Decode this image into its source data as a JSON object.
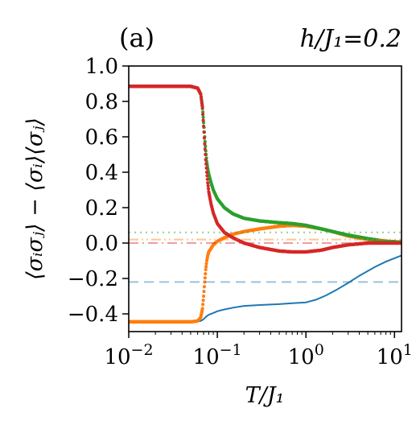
{
  "chart_data": {
    "type": "line",
    "panel_label": "(a)",
    "parameter_label": "h/J₁=0.2",
    "xlabel": "T/J₁",
    "ylabel": "⟨σᵢσⱼ⟩ − ⟨σᵢ⟩⟨σⱼ⟩",
    "x_scale": "log",
    "xlim": [
      0.01,
      12
    ],
    "ylim": [
      -0.5,
      1.0
    ],
    "x_ticks": [
      {
        "value": 0.01,
        "base": "10",
        "exp": "−2"
      },
      {
        "value": 0.1,
        "base": "10",
        "exp": "−1"
      },
      {
        "value": 1,
        "base": "10",
        "exp": "0"
      },
      {
        "value": 10,
        "base": "10",
        "exp": "1"
      }
    ],
    "y_ticks": [
      {
        "value": 1.0,
        "label": "1.0"
      },
      {
        "value": 0.8,
        "label": "0.8"
      },
      {
        "value": 0.6,
        "label": "0.6"
      },
      {
        "value": 0.4,
        "label": "0.4"
      },
      {
        "value": 0.2,
        "label": "0.2"
      },
      {
        "value": 0.0,
        "label": "0.0"
      },
      {
        "value": -0.2,
        "label": "−0.2"
      },
      {
        "value": -0.4,
        "label": "−0.4"
      }
    ],
    "grid": false,
    "legend": "none",
    "series": [
      {
        "color": "#1f77b4",
        "style": "solid",
        "x": [
          0.01,
          0.03,
          0.055,
          0.065,
          0.07,
          0.075,
          0.08,
          0.09,
          0.1,
          0.12,
          0.15,
          0.2,
          0.3,
          0.5,
          0.7,
          1.0,
          1.3,
          1.7,
          2.2,
          3.0,
          4.0,
          6.0,
          8.0,
          12.0
        ],
        "y": [
          -0.445,
          -0.445,
          -0.445,
          -0.44,
          -0.43,
          -0.415,
          -0.405,
          -0.395,
          -0.385,
          -0.375,
          -0.365,
          -0.355,
          -0.35,
          -0.345,
          -0.34,
          -0.335,
          -0.32,
          -0.295,
          -0.265,
          -0.225,
          -0.185,
          -0.135,
          -0.105,
          -0.07
        ]
      },
      {
        "color": "#ff7f0e",
        "style": "markers",
        "x": [
          0.01,
          0.05,
          0.06,
          0.065,
          0.068,
          0.07,
          0.072,
          0.074,
          0.076,
          0.078,
          0.08,
          0.085,
          0.09,
          0.1,
          0.12,
          0.15,
          0.2,
          0.3,
          0.5,
          0.7,
          1.0,
          1.5,
          2.0,
          3.0,
          5.0,
          8.0,
          12.0
        ],
        "y": [
          -0.445,
          -0.445,
          -0.44,
          -0.42,
          -0.37,
          -0.3,
          -0.22,
          -0.15,
          -0.1,
          -0.07,
          -0.05,
          -0.03,
          -0.01,
          0.01,
          0.03,
          0.05,
          0.065,
          0.08,
          0.095,
          0.1,
          0.095,
          0.08,
          0.065,
          0.04,
          0.02,
          0.01,
          0.005
        ]
      },
      {
        "color": "#2ca02c",
        "style": "markers",
        "x": [
          0.01,
          0.05,
          0.06,
          0.065,
          0.068,
          0.07,
          0.072,
          0.074,
          0.076,
          0.078,
          0.08,
          0.085,
          0.09,
          0.1,
          0.12,
          0.15,
          0.2,
          0.3,
          0.5,
          0.7,
          1.0,
          1.5,
          2.0,
          3.0,
          5.0,
          8.0,
          12.0
        ],
        "y": [
          0.885,
          0.885,
          0.875,
          0.84,
          0.77,
          0.68,
          0.6,
          0.52,
          0.46,
          0.42,
          0.39,
          0.34,
          0.3,
          0.25,
          0.2,
          0.165,
          0.14,
          0.125,
          0.115,
          0.11,
          0.1,
          0.08,
          0.065,
          0.045,
          0.025,
          0.01,
          0.005
        ]
      },
      {
        "color": "#d62728",
        "style": "markers",
        "x": [
          0.01,
          0.05,
          0.06,
          0.065,
          0.068,
          0.07,
          0.072,
          0.074,
          0.076,
          0.078,
          0.08,
          0.085,
          0.09,
          0.1,
          0.12,
          0.15,
          0.2,
          0.3,
          0.5,
          0.7,
          1.0,
          1.5,
          2.0,
          3.0,
          5.0,
          8.0,
          12.0
        ],
        "y": [
          0.885,
          0.885,
          0.875,
          0.84,
          0.76,
          0.66,
          0.56,
          0.47,
          0.4,
          0.34,
          0.29,
          0.22,
          0.17,
          0.11,
          0.06,
          0.03,
          0.0,
          -0.025,
          -0.045,
          -0.05,
          -0.05,
          -0.04,
          -0.025,
          -0.01,
          0.0,
          0.0,
          0.0
        ]
      },
      {
        "color": "#1f77b4",
        "style": "dashed",
        "opacity": 0.45,
        "x": [
          0.01,
          12.0
        ],
        "y": [
          -0.22,
          -0.22
        ]
      },
      {
        "color": "#ff7f0e",
        "style": "dashdotdot",
        "opacity": 0.45,
        "x": [
          0.01,
          12.0
        ],
        "y": [
          0.02,
          0.02
        ]
      },
      {
        "color": "#2ca02c",
        "style": "dotted",
        "opacity": 0.5,
        "x": [
          0.01,
          12.0
        ],
        "y": [
          0.06,
          0.06
        ]
      },
      {
        "color": "#d62728",
        "style": "dashdot",
        "opacity": 0.45,
        "x": [
          0.01,
          12.0
        ],
        "y": [
          0.0,
          0.0
        ]
      }
    ]
  }
}
